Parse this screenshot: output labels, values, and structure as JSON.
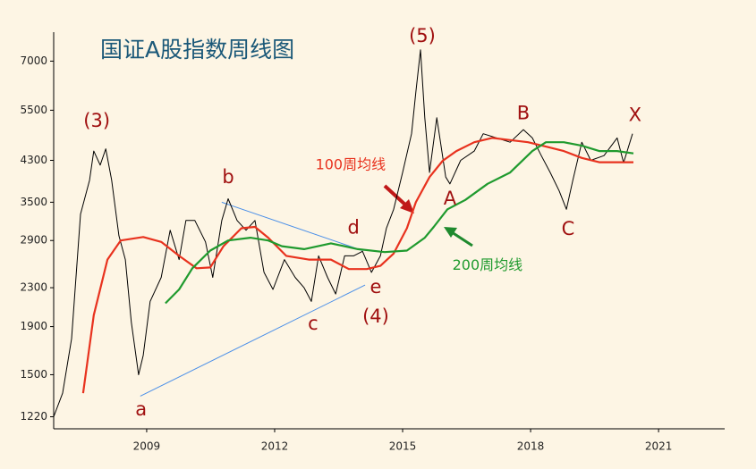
{
  "chart_data": {
    "type": "line",
    "title": "国证A股指数周线图",
    "y_scale": "log",
    "grid": false,
    "xlim": [
      2006.82,
      2022.55
    ],
    "xticks": [
      2009,
      2012,
      2015,
      2018,
      2021
    ],
    "ylim": [
      1150,
      8000
    ],
    "yticks": [
      1220,
      1500,
      1900,
      2300,
      2900,
      3500,
      4300,
      5500,
      7000
    ],
    "series": [
      {
        "color": "#000000",
        "x": [
          2006.82,
          2007.03,
          2007.24,
          2007.45,
          2007.66,
          2007.76,
          2007.91,
          2008.04,
          2008.18,
          2008.35,
          2008.5,
          2008.64,
          2008.81,
          2008.92,
          2009.08,
          2009.34,
          2009.55,
          2009.76,
          2009.92,
          2010.13,
          2010.38,
          2010.55,
          2010.76,
          2010.91,
          2011.12,
          2011.33,
          2011.54,
          2011.75,
          2011.96,
          2012.23,
          2012.48,
          2012.69,
          2012.86,
          2013.03,
          2013.24,
          2013.43,
          2013.64,
          2013.85,
          2014.06,
          2014.27,
          2014.48,
          2014.62,
          2014.79,
          2015.0,
          2015.21,
          2015.31,
          2015.42,
          2015.52,
          2015.63,
          2015.8,
          2015.88,
          2016.01,
          2016.11,
          2016.36,
          2016.68,
          2016.89,
          2017.2,
          2017.52,
          2017.83,
          2018.04,
          2018.25,
          2018.46,
          2018.67,
          2018.84,
          2018.99,
          2019.2,
          2019.41,
          2019.72,
          2020.03,
          2020.18,
          2020.39
        ],
        "values": [
          1220,
          1370,
          1790,
          3300,
          3900,
          4500,
          4200,
          4550,
          3900,
          2970,
          2640,
          1940,
          1500,
          1650,
          2150,
          2420,
          3050,
          2640,
          3200,
          3200,
          2880,
          2420,
          3200,
          3560,
          3200,
          3050,
          3200,
          2480,
          2280,
          2640,
          2420,
          2300,
          2150,
          2690,
          2420,
          2230,
          2690,
          2690,
          2750,
          2480,
          2690,
          3080,
          3380,
          4050,
          4900,
          6010,
          7400,
          5300,
          4050,
          5300,
          4750,
          3960,
          3830,
          4300,
          4500,
          4900,
          4800,
          4700,
          5000,
          4800,
          4400,
          4050,
          3700,
          3380,
          3900,
          4700,
          4300,
          4400,
          4800,
          4250,
          4900
        ]
      },
      {
        "name": "100周均线",
        "color": "#e8321e",
        "label_at": [
          2013.78,
          4200
        ],
        "x": [
          2007.51,
          2007.76,
          2008.08,
          2008.39,
          2008.92,
          2009.34,
          2009.76,
          2010.17,
          2010.49,
          2010.8,
          2011.22,
          2011.54,
          2011.85,
          2012.27,
          2012.8,
          2013.32,
          2013.74,
          2014.16,
          2014.48,
          2014.79,
          2015.1,
          2015.31,
          2015.63,
          2015.94,
          2016.26,
          2016.68,
          2017.1,
          2017.52,
          2017.94,
          2018.36,
          2018.78,
          2019.2,
          2019.61,
          2020.03,
          2020.41
        ],
        "values": [
          1370,
          2010,
          2640,
          2900,
          2950,
          2880,
          2690,
          2530,
          2540,
          2820,
          3080,
          3100,
          2940,
          2690,
          2640,
          2640,
          2520,
          2520,
          2560,
          2720,
          3080,
          3500,
          3960,
          4290,
          4500,
          4700,
          4800,
          4750,
          4700,
          4600,
          4500,
          4350,
          4260,
          4260,
          4260
        ]
      },
      {
        "name": "200周均线",
        "color": "#1f9a2e",
        "label_at": [
          2016.99,
          2560
        ],
        "x": [
          2009.44,
          2009.76,
          2010.07,
          2010.49,
          2010.91,
          2011.43,
          2011.85,
          2012.17,
          2012.69,
          2013.32,
          2013.95,
          2014.58,
          2015.1,
          2015.52,
          2015.73,
          2016.05,
          2016.47,
          2016.99,
          2017.52,
          2018.04,
          2018.36,
          2018.78,
          2019.2,
          2019.61,
          2020.03,
          2020.41
        ],
        "values": [
          2130,
          2280,
          2530,
          2760,
          2900,
          2940,
          2900,
          2820,
          2780,
          2860,
          2780,
          2740,
          2760,
          2940,
          3100,
          3380,
          3540,
          3830,
          4050,
          4500,
          4700,
          4700,
          4620,
          4500,
          4500,
          4450
        ]
      }
    ],
    "annotations": [
      {
        "text": "(3)",
        "x": 2007.83,
        "y": 5200
      },
      {
        "text": "a",
        "x": 2008.87,
        "y": 1260
      },
      {
        "text": "b",
        "x": 2010.91,
        "y": 3950
      },
      {
        "text": "c",
        "x": 2012.9,
        "y": 1920
      },
      {
        "text": "d",
        "x": 2013.85,
        "y": 3080
      },
      {
        "text": "e",
        "x": 2014.37,
        "y": 2300
      },
      {
        "text": "(4)",
        "x": 2014.37,
        "y": 1990
      },
      {
        "text": "(5)",
        "x": 2015.46,
        "y": 7900
      },
      {
        "text": "A",
        "x": 2016.11,
        "y": 3550
      },
      {
        "text": "B",
        "x": 2017.83,
        "y": 5400
      },
      {
        "text": "C",
        "x": 2018.88,
        "y": 3060
      },
      {
        "text": "X",
        "x": 2020.45,
        "y": 5350
      }
    ],
    "trendlines": [
      {
        "x": [
          2010.76,
          2014.06
        ],
        "y": [
          3500,
          2760
        ],
        "color": "#4a8fe8"
      },
      {
        "x": [
          2008.85,
          2014.12
        ],
        "y": [
          1350,
          2330
        ],
        "color": "#4a8fe8"
      }
    ]
  }
}
